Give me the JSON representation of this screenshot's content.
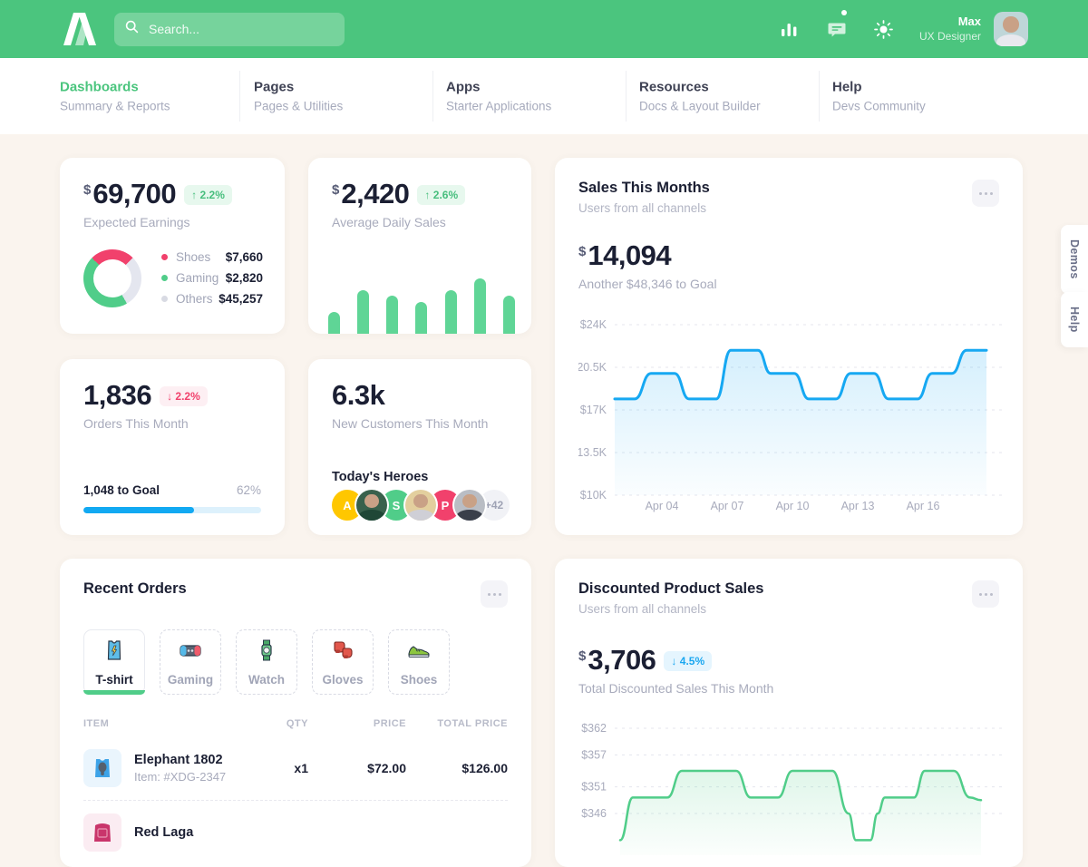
{
  "theme": {
    "header_green": "#4BC57E",
    "accent_green": "#50CD89",
    "accent_red": "#F1416C",
    "accent_blue": "#16A8F2",
    "page_bg": "#FAF4EE",
    "text_dark": "#1B1F33",
    "text_muted": "#A1A5B7"
  },
  "header": {
    "search_placeholder": "Search...",
    "user_name": "Max",
    "user_role": "UX Designer"
  },
  "nav": {
    "items": [
      {
        "label": "Dashboards",
        "sublabel": "Summary & Reports",
        "active": true
      },
      {
        "label": "Pages",
        "sublabel": "Pages & Utilities",
        "active": false
      },
      {
        "label": "Apps",
        "sublabel": "Starter Applications",
        "active": false
      },
      {
        "label": "Resources",
        "sublabel": "Docs & Layout Builder",
        "active": false
      },
      {
        "label": "Help",
        "sublabel": "Devs Community",
        "active": false
      }
    ]
  },
  "side_tabs": [
    {
      "label": "Demos"
    },
    {
      "label": "Help"
    }
  ],
  "cards": {
    "expected_earnings": {
      "currency": "$",
      "value": "69,700",
      "delta_arrow": "↑",
      "delta": "2.2%",
      "label": "Expected Earnings",
      "donut": {
        "start_deg": 315,
        "segments": [
          {
            "name": "Shoes",
            "color": "#F1416C",
            "deg": 90
          },
          {
            "name": "Others",
            "color": "#E4E6EF",
            "deg": 105
          },
          {
            "name": "Gaming",
            "color": "#50CD89",
            "deg": 165
          }
        ]
      },
      "legend": [
        {
          "name": "Shoes",
          "value": "$7,660",
          "color": "#F1416C"
        },
        {
          "name": "Gaming",
          "value": "$2,820",
          "color": "#50CD89"
        },
        {
          "name": "Others",
          "value": "$45,257",
          "color": "#D8DAE3"
        }
      ]
    },
    "daily_sales": {
      "currency": "$",
      "value": "2,420",
      "delta_arrow": "↑",
      "delta": "2.6%",
      "label": "Average Daily Sales"
    },
    "sales_month": {
      "title": "Sales This Months",
      "subtitle": "Users from all channels",
      "currency": "$",
      "value": "14,094",
      "goal_note": "Another $48,346 to Goal"
    },
    "orders": {
      "value": "1,836",
      "delta_arrow": "↓",
      "delta": "2.2%",
      "label": "Orders This Month",
      "goal_label": "1,048 to Goal",
      "goal_pct": "62%",
      "progress_pct": 62
    },
    "new_customers": {
      "value": "6.3k",
      "label": "New Customers This Month",
      "heroes_title": "Today's Heroes",
      "avatars": [
        {
          "kind": "initial",
          "text": "A",
          "color": "#FFC700"
        },
        {
          "kind": "photo",
          "variant": "v1"
        },
        {
          "kind": "initial",
          "text": "S",
          "color": "#50CD89"
        },
        {
          "kind": "photo",
          "variant": "v2"
        },
        {
          "kind": "initial",
          "text": "P",
          "color": "#F1416C"
        },
        {
          "kind": "photo",
          "variant": "v3"
        },
        {
          "kind": "chip",
          "text": "+42"
        }
      ]
    },
    "recent_orders": {
      "title": "Recent Orders",
      "tabs": [
        {
          "label": "T-shirt",
          "active": true
        },
        {
          "label": "Gaming",
          "active": false
        },
        {
          "label": "Watch",
          "active": false
        },
        {
          "label": "Gloves",
          "active": false
        },
        {
          "label": "Shoes",
          "active": false
        }
      ],
      "table": {
        "headers": [
          "ITEM",
          "QTY",
          "PRICE",
          "TOTAL PRICE"
        ],
        "rows": [
          {
            "name": "Elephant 1802",
            "sub": "Item: #XDG-2347",
            "qty": "x1",
            "price": "$72.00",
            "total": "$126.00"
          },
          {
            "name": "Red Laga",
            "sub": "",
            "qty": "",
            "price": "",
            "total": ""
          }
        ]
      }
    },
    "discounted": {
      "title": "Discounted Product Sales",
      "subtitle": "Users from all channels",
      "currency": "$",
      "value": "3,706",
      "delta_arrow": "↓",
      "delta": "4.5%",
      "label": "Total Discounted Sales This Month"
    }
  },
  "chart_data": [
    {
      "id": "daily-bars",
      "type": "bar",
      "title": "Average Daily Sales mini bars",
      "values": [
        24,
        48,
        42,
        35,
        48,
        61,
        42
      ],
      "color": "#5FD596"
    },
    {
      "id": "sales-line",
      "type": "line",
      "title": "Sales This Months",
      "color": "#16A8F2",
      "ylim": [
        10,
        24
      ],
      "y_ticks": [
        "$24K",
        "$20.5K",
        "$17K",
        "$13.5K",
        "$10K"
      ],
      "y_values": [
        24,
        20.5,
        17,
        13.5,
        10
      ],
      "x_ticks": [
        "Apr 04",
        "Apr 07",
        "Apr 10",
        "Apr 13",
        "Apr 16"
      ],
      "points": [
        [
          0,
          17.9
        ],
        [
          22,
          17.9
        ],
        [
          40,
          20
        ],
        [
          66,
          20
        ],
        [
          82,
          17.9
        ],
        [
          112,
          17.9
        ],
        [
          128,
          21.9
        ],
        [
          158,
          21.9
        ],
        [
          172,
          20
        ],
        [
          198,
          20
        ],
        [
          214,
          17.9
        ],
        [
          244,
          17.9
        ],
        [
          260,
          20
        ],
        [
          286,
          20
        ],
        [
          302,
          17.9
        ],
        [
          334,
          17.9
        ],
        [
          350,
          20
        ],
        [
          372,
          20
        ],
        [
          388,
          21.9
        ],
        [
          410,
          21.9
        ]
      ]
    },
    {
      "id": "discount-line",
      "type": "line",
      "title": "Discounted Product Sales",
      "color": "#50CD89",
      "ylim": [
        346,
        362
      ],
      "y_ticks": [
        "$362",
        "$357",
        "$351",
        "$346"
      ],
      "y_values": [
        362,
        357,
        351,
        346
      ],
      "x_ticks": [],
      "points": [
        [
          6,
          341
        ],
        [
          20,
          349
        ],
        [
          58,
          349
        ],
        [
          74,
          354
        ],
        [
          134,
          354
        ],
        [
          150,
          349
        ],
        [
          180,
          349
        ],
        [
          196,
          354
        ],
        [
          240,
          354
        ],
        [
          258,
          346
        ],
        [
          266,
          341
        ],
        [
          282,
          341
        ],
        [
          290,
          346
        ],
        [
          298,
          349
        ],
        [
          330,
          349
        ],
        [
          342,
          354
        ],
        [
          374,
          354
        ],
        [
          392,
          349
        ],
        [
          404,
          348.5
        ]
      ]
    }
  ]
}
